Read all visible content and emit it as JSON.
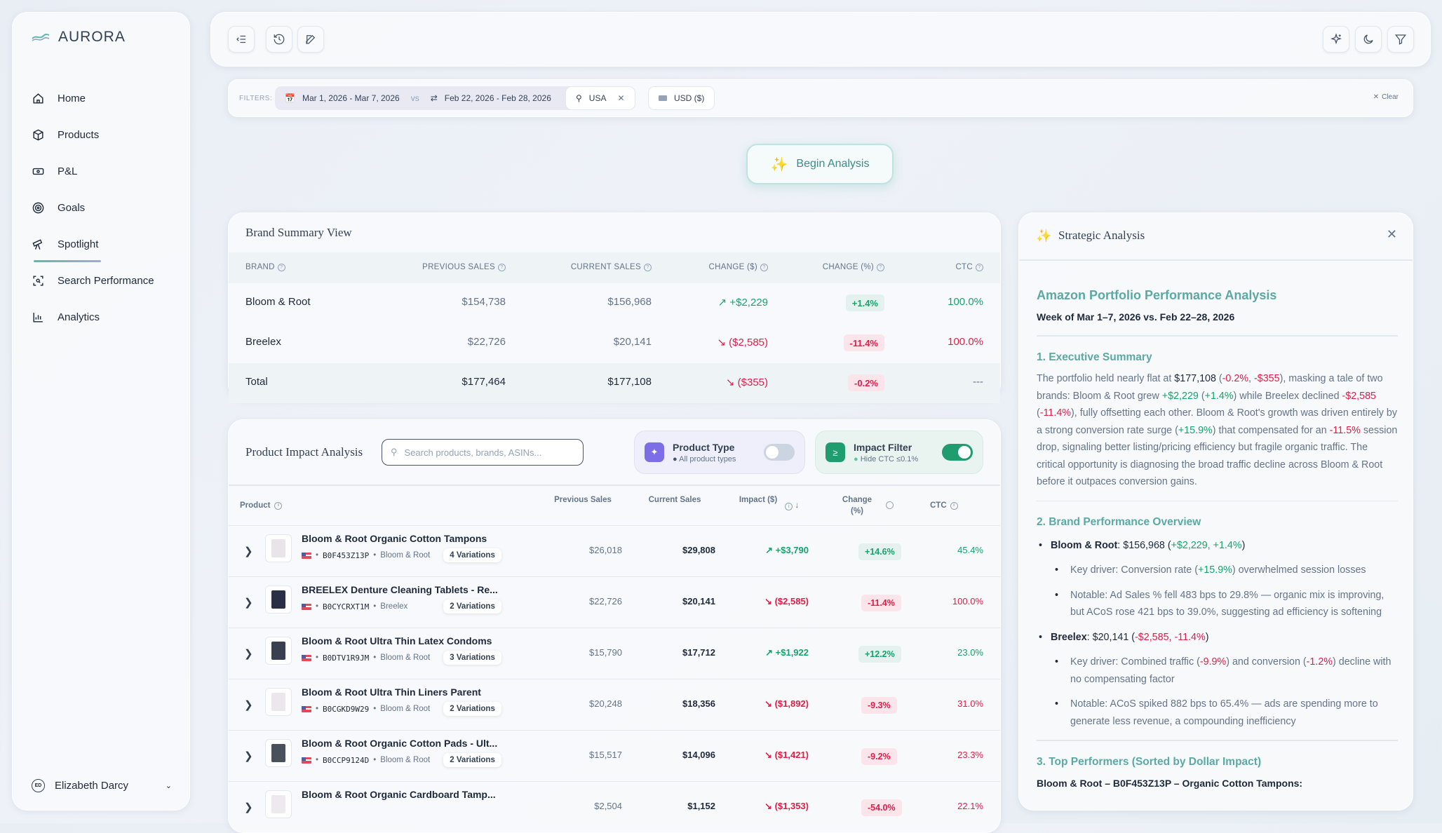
{
  "app": {
    "name": "AURORA"
  },
  "sidebar": {
    "items": [
      {
        "label": "Home",
        "icon": "home-icon"
      },
      {
        "label": "Products",
        "icon": "box-icon"
      },
      {
        "label": "P&L",
        "icon": "money-icon"
      },
      {
        "label": "Goals",
        "icon": "target-icon"
      },
      {
        "label": "Spotlight",
        "icon": "telescope-icon",
        "active": true
      },
      {
        "label": "Search Performance",
        "icon": "scan-search-icon"
      },
      {
        "label": "Analytics",
        "icon": "bar-chart-icon"
      }
    ],
    "user": {
      "initials": "ED",
      "name": "Elizabeth Darcy"
    }
  },
  "filters": {
    "label": "FILTERS:",
    "date_range": "Mar 1, 2026 - Mar 7, 2026",
    "vs": "vs",
    "compare_range": "Feb 22, 2026 - Feb 28, 2026",
    "country": "USA",
    "currency": "USD ($)",
    "clear": "Clear"
  },
  "begin_analysis": "Begin Analysis",
  "brand_summary": {
    "title": "Brand Summary View",
    "columns": [
      "BRAND",
      "PREVIOUS SALES",
      "CURRENT SALES",
      "CHANGE ($)",
      "CHANGE (%)",
      "CTC"
    ],
    "rows": [
      {
        "brand": "Bloom & Root",
        "previous": "$154,738",
        "current": "$156,968",
        "change": "+$2,229",
        "change_pct": "+1.4%",
        "ctc": "100.0%",
        "trend": "pos"
      },
      {
        "brand": "Breelex",
        "previous": "$22,726",
        "current": "$20,141",
        "change": "($2,585)",
        "change_pct": "-11.4%",
        "ctc": "100.0%",
        "trend": "neg"
      },
      {
        "brand": "Total",
        "previous": "$177,464",
        "current": "$177,108",
        "change": "($355)",
        "change_pct": "-0.2%",
        "ctc": "---",
        "trend": "neg"
      }
    ]
  },
  "product_impact": {
    "title": "Product Impact Analysis",
    "search_placeholder": "Search products, brands, ASINs...",
    "product_type": {
      "title": "Product Type",
      "sub": "All product types",
      "on": false
    },
    "impact_filter": {
      "title": "Impact Filter",
      "sub": "Hide CTC ≤0.1%",
      "on": true
    },
    "columns": {
      "product": "Product",
      "previous": "Previous Sales",
      "current": "Current Sales",
      "impact": "Impact ($)",
      "change": "Change (%)",
      "ctc": "CTC"
    },
    "rows": [
      {
        "name": "Bloom & Root Organic Cotton Tampons",
        "asin": "B0F453Z13P",
        "brand": "Bloom & Root",
        "variations": "4 Variations",
        "previous": "$26,018",
        "current": "$29,808",
        "impact": "+$3,790",
        "change": "+14.6%",
        "ctc": "45.4%",
        "trend": "pos"
      },
      {
        "name": "BREELEX Denture Cleaning Tablets - Re...",
        "asin": "B0CYCRXT1M",
        "brand": "Breelex",
        "variations": "2 Variations",
        "previous": "$22,726",
        "current": "$20,141",
        "impact": "($2,585)",
        "change": "-11.4%",
        "ctc": "100.0%",
        "trend": "neg"
      },
      {
        "name": "Bloom & Root Ultra Thin Latex Condoms",
        "asin": "B0DTV1R9JM",
        "brand": "Bloom & Root",
        "variations": "3 Variations",
        "previous": "$15,790",
        "current": "$17,712",
        "impact": "+$1,922",
        "change": "+12.2%",
        "ctc": "23.0%",
        "trend": "pos"
      },
      {
        "name": "Bloom & Root Ultra Thin Liners Parent",
        "asin": "B0CGKD9W29",
        "brand": "Bloom & Root",
        "variations": "2 Variations",
        "previous": "$20,248",
        "current": "$18,356",
        "impact": "($1,892)",
        "change": "-9.3%",
        "ctc": "31.0%",
        "trend": "neg"
      },
      {
        "name": "Bloom & Root Organic Cotton Pads - Ult...",
        "asin": "B0CCP9124D",
        "brand": "Bloom & Root",
        "variations": "2 Variations",
        "previous": "$15,517",
        "current": "$14,096",
        "impact": "($1,421)",
        "change": "-9.2%",
        "ctc": "23.3%",
        "trend": "neg"
      },
      {
        "name": "Bloom & Root Organic Cardboard Tamp...",
        "previous": "$2,504",
        "current": "$1,152",
        "impact": "($1,353)",
        "change": "-54.0%",
        "ctc": "22.1%",
        "trend": "neg"
      }
    ]
  },
  "strategic": {
    "title": "Strategic Analysis",
    "heading": "Amazon Portfolio Performance Analysis",
    "subheading": "Week of Mar 1–7, 2026 vs. Feb 22–28, 2026",
    "s1": "1. Executive Summary",
    "p1": [
      [
        "The portfolio held nearly flat at ",
        ""
      ],
      [
        "$177,108",
        "dark"
      ],
      [
        " (",
        ""
      ],
      [
        "-0.2%",
        "neg"
      ],
      [
        ", ",
        ""
      ],
      [
        "-$355",
        "neg"
      ],
      [
        "), masking a tale of two brands: Bloom & Root grew ",
        ""
      ],
      [
        "+$2,229",
        "pos"
      ],
      [
        " (",
        ""
      ],
      [
        "+1.4%",
        "pos"
      ],
      [
        ") while Breelex declined ",
        ""
      ],
      [
        "-$2,585",
        "neg"
      ],
      [
        " (",
        ""
      ],
      [
        "-11.4%",
        "neg"
      ],
      [
        "), fully offsetting each other. Bloom & Root's growth was driven entirely by a strong conversion rate surge (",
        ""
      ],
      [
        "+15.9%",
        "pos"
      ],
      [
        ") that compensated for an ",
        ""
      ],
      [
        "-11.5%",
        "neg"
      ],
      [
        " session drop, signaling better listing/pricing efficiency but fragile organic traffic. The critical opportunity is diagnosing the broad traffic decline across Bloom & Root before it outpaces conversion gains.",
        ""
      ]
    ],
    "s2": "2. Brand Performance Overview",
    "b1": [
      [
        "Bloom & Root",
        "b"
      ],
      [
        ": $156,968 (",
        "dark"
      ],
      [
        "+$2,229, +1.4%",
        "pos"
      ],
      [
        ")",
        "dark"
      ]
    ],
    "b1a": [
      [
        "Key driver: Conversion rate (",
        ""
      ],
      [
        "+15.9%",
        "pos"
      ],
      [
        ") overwhelmed session losses",
        ""
      ]
    ],
    "b1b": [
      [
        "Notable: Ad Sales % fell 483 bps to 29.8% — organic mix is improving, but ACoS rose 421 bps to 39.0%, suggesting ad efficiency is softening",
        ""
      ]
    ],
    "b2": [
      [
        "Breelex",
        "b"
      ],
      [
        ": $20,141 (",
        "dark"
      ],
      [
        "-$2,585, -11.4%",
        "neg"
      ],
      [
        ")",
        "dark"
      ]
    ],
    "b2a": [
      [
        "Key driver: Combined traffic (",
        ""
      ],
      [
        "-9.9%",
        "neg"
      ],
      [
        ") and conversion (",
        ""
      ],
      [
        "-1.2%",
        "neg"
      ],
      [
        ") decline with no compensating factor",
        ""
      ]
    ],
    "b2b": [
      [
        "Notable: ACoS spiked 882 bps to 65.4% — ads are spending more to generate less revenue, a compounding inefficiency",
        ""
      ]
    ],
    "s3": "3. Top Performers (Sorted by Dollar Impact)",
    "p3": "Bloom & Root – B0F453Z13P – Organic Cotton Tampons:"
  },
  "colors": {
    "accent": "#5aa9a4",
    "positive": "#16a36a",
    "negative": "#e11d48",
    "product_type": "#7c6ee6",
    "impact_filter": "#1f9d6e"
  }
}
